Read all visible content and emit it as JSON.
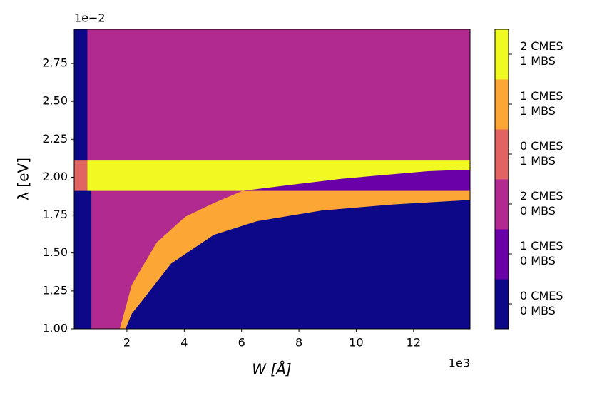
{
  "chart_data": {
    "type": "phase_diagram",
    "xlabel": "W [Å]",
    "ylabel": "λ [eV]",
    "x_offset_label": "1e3",
    "y_offset_label": "1e−2",
    "xlim": [
      0.16,
      13.97
    ],
    "ylim": [
      1.0,
      2.976
    ],
    "xticks": [
      2,
      4,
      6,
      8,
      10,
      12
    ],
    "yticks": [
      {
        "value": 1.0,
        "label": "1.00"
      },
      1.25,
      {
        "value": 1.5,
        "label": "1.50"
      },
      1.75,
      {
        "value": 2.0,
        "label": "2.00"
      },
      2.25,
      {
        "value": 2.5,
        "label": "2.50"
      },
      2.75
    ],
    "phases": [
      {
        "label": [
          "0 CMES",
          "0 MBS"
        ],
        "color": "#0d0887"
      },
      {
        "label": [
          "1 CMES",
          "0 MBS"
        ],
        "color": "#6a00a8"
      },
      {
        "label": [
          "2 CMES",
          "0 MBS"
        ],
        "color": "#b12a90"
      },
      {
        "label": [
          "0 CMES",
          "1 MBS"
        ],
        "color": "#e16462"
      },
      {
        "label": [
          "1 CMES",
          "1 MBS"
        ],
        "color": "#fca636"
      },
      {
        "label": [
          "2 CMES",
          "1 MBS"
        ],
        "color": "#f0f921"
      }
    ],
    "regions": [
      {
        "phase": 0,
        "points": [
          [
            0.16,
            1.0
          ],
          [
            0.16,
            2.976
          ],
          [
            13.97,
            2.976
          ],
          [
            13.97,
            1.0
          ]
        ]
      },
      {
        "phase": 2,
        "points": [
          [
            0.62,
            1.0
          ],
          [
            0.62,
            2.976
          ],
          [
            13.97,
            2.976
          ],
          [
            13.97,
            1.0
          ]
        ]
      },
      {
        "phase": 0,
        "points": [
          [
            0.62,
            1.0
          ],
          [
            0.62,
            1.91
          ],
          [
            0.76,
            1.91
          ],
          [
            0.76,
            1.0
          ]
        ]
      },
      {
        "phase": 5,
        "points": [
          [
            0.62,
            1.91
          ],
          [
            0.62,
            2.11
          ],
          [
            13.97,
            2.11
          ],
          [
            13.97,
            1.91
          ]
        ]
      },
      {
        "phase": 3,
        "points": [
          [
            0.16,
            1.91
          ],
          [
            0.16,
            2.11
          ],
          [
            0.62,
            2.11
          ],
          [
            0.62,
            1.91
          ]
        ]
      },
      {
        "phase": 1,
        "points": [
          [
            6.03,
            1.91
          ],
          [
            7.52,
            1.945
          ],
          [
            9.5,
            1.99
          ],
          [
            12.5,
            2.04
          ],
          [
            13.97,
            2.05
          ],
          [
            13.97,
            1.91
          ]
        ]
      },
      {
        "phase": 4,
        "points": [
          [
            1.75,
            1.0
          ],
          [
            2.17,
            1.29
          ],
          [
            3.04,
            1.57
          ],
          [
            4.04,
            1.74
          ],
          [
            5.03,
            1.83
          ],
          [
            6.03,
            1.91
          ],
          [
            13.97,
            1.91
          ],
          [
            13.97,
            1.0
          ]
        ]
      },
      {
        "phase": 0,
        "points": [
          [
            1.95,
            1.0
          ],
          [
            2.17,
            1.1
          ],
          [
            2.55,
            1.19
          ],
          [
            3.54,
            1.43
          ],
          [
            5.03,
            1.62
          ],
          [
            6.53,
            1.71
          ],
          [
            8.77,
            1.78
          ],
          [
            11.25,
            1.82
          ],
          [
            13.97,
            1.85
          ],
          [
            13.97,
            1.0
          ]
        ]
      }
    ]
  }
}
